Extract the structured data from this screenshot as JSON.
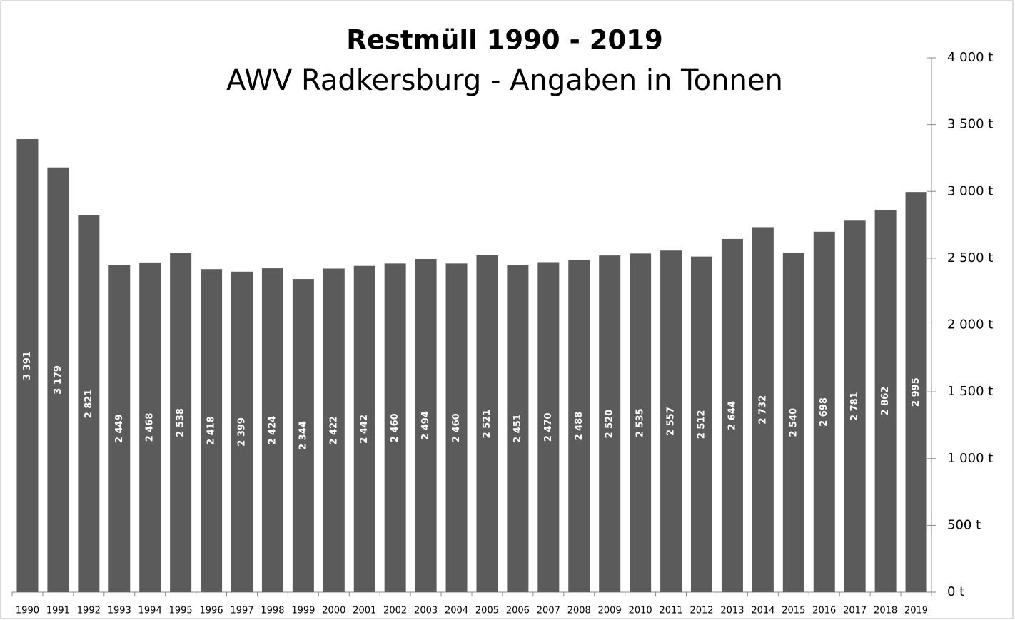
{
  "chart_data": {
    "type": "bar",
    "title": "Restmüll 1990 - 2019",
    "subtitle": "AWV Radkersburg - Angaben in Tonnen",
    "categories": [
      "1990",
      "1991",
      "1992",
      "1993",
      "1994",
      "1995",
      "1996",
      "1997",
      "1998",
      "1999",
      "2000",
      "2001",
      "2002",
      "2003",
      "2004",
      "2005",
      "2006",
      "2007",
      "2008",
      "2009",
      "2010",
      "2011",
      "2012",
      "2013",
      "2014",
      "2015",
      "2016",
      "2017",
      "2018",
      "2019"
    ],
    "values": [
      3391,
      3179,
      2821,
      2449,
      2468,
      2538,
      2418,
      2399,
      2424,
      2344,
      2422,
      2442,
      2460,
      2494,
      2460,
      2521,
      2451,
      2470,
      2488,
      2520,
      2535,
      2557,
      2512,
      2644,
      2732,
      2540,
      2698,
      2781,
      2862,
      2995
    ],
    "value_labels": [
      "3 391",
      "3 179",
      "2 821",
      "2 449",
      "2 468",
      "2 538",
      "2 418",
      "2 399",
      "2 424",
      "2 344",
      "2 422",
      "2 442",
      "2 460",
      "2 494",
      "2 460",
      "2 521",
      "2 451",
      "2 470",
      "2 488",
      "2 520",
      "2 535",
      "2 557",
      "2 512",
      "2 644",
      "2 732",
      "2 540",
      "2 698",
      "2 781",
      "2 862",
      "2 995"
    ],
    "color": "#5b5b5b",
    "ylim": [
      0,
      4000
    ],
    "yticks": [
      {
        "value": 0,
        "label": "0 t"
      },
      {
        "value": 500,
        "label": "500 t"
      },
      {
        "value": 1000,
        "label": "1 000 t"
      },
      {
        "value": 1500,
        "label": "1 500 t"
      },
      {
        "value": 2000,
        "label": "2 000 t"
      },
      {
        "value": 2500,
        "label": "2 500 t"
      },
      {
        "value": 3000,
        "label": "3 000 t"
      },
      {
        "value": 3500,
        "label": "3 500 t"
      },
      {
        "value": 4000,
        "label": "4 000 t"
      }
    ],
    "y_axis_side": "right"
  }
}
